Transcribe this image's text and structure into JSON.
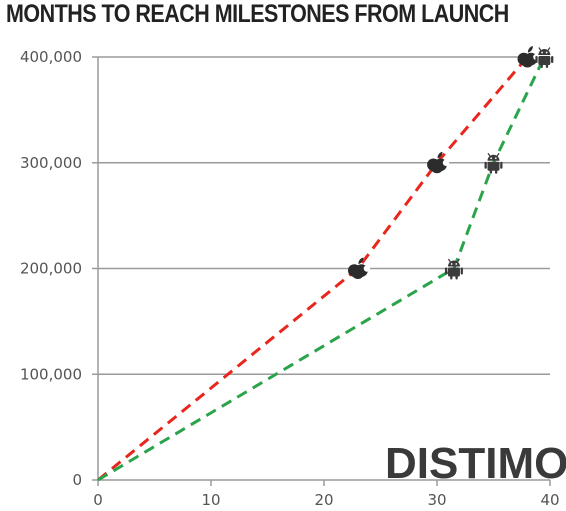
{
  "chart_data": {
    "type": "line",
    "title": "MONTHS TO REACH MILESTONES FROM LAUNCH",
    "xlabel": "",
    "ylabel": "",
    "xlim": [
      0,
      40
    ],
    "ylim": [
      0,
      400000
    ],
    "x_ticks": [
      0,
      10,
      20,
      30,
      40
    ],
    "y_ticks": [
      0,
      100000,
      200000,
      300000,
      400000
    ],
    "x_tick_labels": [
      "0",
      "10",
      "20",
      "30",
      "40"
    ],
    "y_tick_labels": [
      "0",
      "100,000",
      "200,000",
      "300,000",
      "400,000"
    ],
    "grid": "horizontal",
    "legend": "none",
    "series": [
      {
        "marker": "apple-icon",
        "color": "#e8261d",
        "style": "dashed",
        "x": [
          0,
          23,
          30,
          38
        ],
        "y": [
          0,
          200000,
          300000,
          400000
        ]
      },
      {
        "marker": "android-icon",
        "color": "#2aa44a",
        "style": "dashed",
        "x": [
          0,
          31.5,
          35,
          39.5
        ],
        "y": [
          0,
          200000,
          300000,
          400000
        ]
      }
    ]
  },
  "watermark": "DISTIMO"
}
